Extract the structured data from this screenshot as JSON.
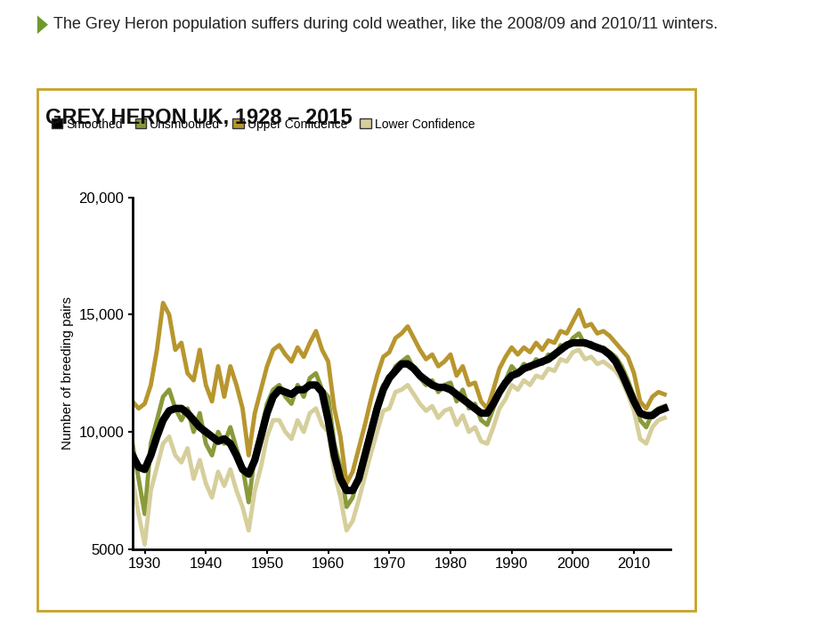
{
  "chart_data": {
    "type": "line",
    "title": "GREY HERON UK, 1928 – 2015",
    "subtitle": "The Grey Heron population suffers during cold weather, like the 2008/09 and 2010/11 winters.",
    "y_label": "Number of breeding pairs",
    "x": [
      1928,
      1929,
      1930,
      1931,
      1932,
      1933,
      1934,
      1935,
      1936,
      1937,
      1938,
      1939,
      1940,
      1941,
      1942,
      1943,
      1944,
      1945,
      1946,
      1947,
      1948,
      1949,
      1950,
      1951,
      1952,
      1953,
      1954,
      1955,
      1956,
      1957,
      1958,
      1959,
      1960,
      1961,
      1962,
      1963,
      1964,
      1965,
      1966,
      1967,
      1968,
      1969,
      1970,
      1971,
      1972,
      1973,
      1974,
      1975,
      1976,
      1977,
      1978,
      1979,
      1980,
      1981,
      1982,
      1983,
      1984,
      1985,
      1986,
      1987,
      1988,
      1989,
      1990,
      1991,
      1992,
      1993,
      1994,
      1995,
      1996,
      1997,
      1998,
      1999,
      2000,
      2001,
      2002,
      2003,
      2004,
      2005,
      2006,
      2007,
      2008,
      2009,
      2010,
      2011,
      2012,
      2013,
      2014,
      2015
    ],
    "series": [
      {
        "name": "Upper Confidence",
        "color": "#b8962e",
        "values": [
          11300,
          11000,
          11200,
          12000,
          13500,
          15500,
          15000,
          13500,
          13800,
          12500,
          12200,
          13500,
          12000,
          11300,
          12800,
          11500,
          12800,
          12000,
          11000,
          9000,
          10800,
          11800,
          12800,
          13500,
          13700,
          13300,
          13000,
          13600,
          13200,
          13800,
          14300,
          13500,
          13000,
          11000,
          9800,
          7800,
          8300,
          9300,
          10300,
          11400,
          12400,
          13200,
          13400,
          14000,
          14200,
          14500,
          14000,
          13500,
          13100,
          13300,
          12800,
          13000,
          13300,
          12400,
          12800,
          12000,
          12100,
          11300,
          11000,
          11800,
          12700,
          13200,
          13600,
          13300,
          13600,
          13400,
          13800,
          13500,
          13900,
          13800,
          14300,
          14200,
          14700,
          15200,
          14500,
          14600,
          14200,
          14300,
          14100,
          13800,
          13500,
          13200,
          12500,
          11300,
          11000,
          11500,
          11700,
          11600
        ]
      },
      {
        "name": "Unsmoothed",
        "color": "#8a9a3a",
        "values": [
          9500,
          8000,
          6500,
          9500,
          10500,
          11500,
          11800,
          11000,
          10500,
          11000,
          10000,
          10800,
          9500,
          9000,
          10000,
          9500,
          10200,
          9300,
          8500,
          7000,
          9000,
          10000,
          11200,
          11800,
          12000,
          11500,
          11200,
          12000,
          11500,
          12300,
          12500,
          11800,
          11500,
          9500,
          8500,
          6800,
          7200,
          8200,
          9200,
          10200,
          11200,
          12000,
          12200,
          12800,
          13000,
          13200,
          12700,
          12300,
          12000,
          12200,
          11700,
          12000,
          12100,
          11300,
          11800,
          11000,
          11200,
          10500,
          10300,
          11000,
          11800,
          12200,
          12800,
          12500,
          12900,
          12700,
          13100,
          12900,
          13300,
          13200,
          13700,
          13600,
          14000,
          14200,
          13700,
          13800,
          13500,
          13600,
          13400,
          13200,
          12800,
          12200,
          11500,
          10500,
          10200,
          10800,
          11000,
          11100
        ]
      },
      {
        "name": "Lower Confidence",
        "color": "#d6cf9c",
        "values": [
          8000,
          6500,
          5200,
          7500,
          8500,
          9500,
          9800,
          9000,
          8700,
          9300,
          8000,
          8800,
          7800,
          7200,
          8300,
          7700,
          8400,
          7500,
          6800,
          5800,
          7500,
          8500,
          9800,
          10500,
          10500,
          10000,
          9700,
          10500,
          10000,
          10800,
          11000,
          10300,
          10000,
          8300,
          7200,
          5800,
          6200,
          7100,
          8100,
          9100,
          10000,
          10900,
          11000,
          11700,
          11800,
          12000,
          11600,
          11200,
          10900,
          11100,
          10600,
          10900,
          11000,
          10300,
          10700,
          10000,
          10200,
          9600,
          9500,
          10200,
          11000,
          11400,
          12000,
          11800,
          12200,
          12000,
          12400,
          12300,
          12700,
          12600,
          13100,
          13000,
          13400,
          13500,
          13100,
          13200,
          12900,
          13000,
          12800,
          12600,
          12200,
          11600,
          10900,
          9700,
          9500,
          10200,
          10500,
          10600
        ]
      },
      {
        "name": "Smoothed",
        "color": "#000000",
        "values": [
          9000,
          8500,
          8400,
          9000,
          9800,
          10500,
          10900,
          11000,
          11000,
          10800,
          10500,
          10200,
          10000,
          9800,
          9600,
          9700,
          9500,
          9000,
          8400,
          8200,
          8800,
          9800,
          10800,
          11500,
          11800,
          11700,
          11600,
          11800,
          11800,
          12000,
          12000,
          11700,
          10500,
          9000,
          8000,
          7500,
          7500,
          8000,
          9000,
          10000,
          11000,
          11800,
          12300,
          12600,
          12900,
          12900,
          12700,
          12400,
          12200,
          12000,
          11900,
          11900,
          11800,
          11600,
          11400,
          11200,
          11000,
          10800,
          10800,
          11200,
          11700,
          12100,
          12400,
          12500,
          12700,
          12800,
          12900,
          13000,
          13100,
          13300,
          13500,
          13700,
          13800,
          13800,
          13800,
          13700,
          13600,
          13500,
          13300,
          13000,
          12500,
          11900,
          11300,
          10800,
          10700,
          10700,
          10900,
          11000
        ]
      }
    ],
    "legend_order": [
      "Smoothed",
      "Unsmoothed",
      "Upper Confidence",
      "Lower Confidence"
    ],
    "xlim": [
      1928,
      2016
    ],
    "xticks": [
      1930,
      1940,
      1950,
      1960,
      1970,
      1980,
      1990,
      2000,
      2010
    ],
    "ylim": [
      5000,
      20000
    ],
    "yticks": [
      5000,
      {
        "value": 10000,
        "label": "10,000"
      },
      {
        "value": 15000,
        "label": "15,000"
      },
      {
        "value": 20000,
        "label": "20,000"
      }
    ],
    "legend": "upper left",
    "grid": false
  }
}
